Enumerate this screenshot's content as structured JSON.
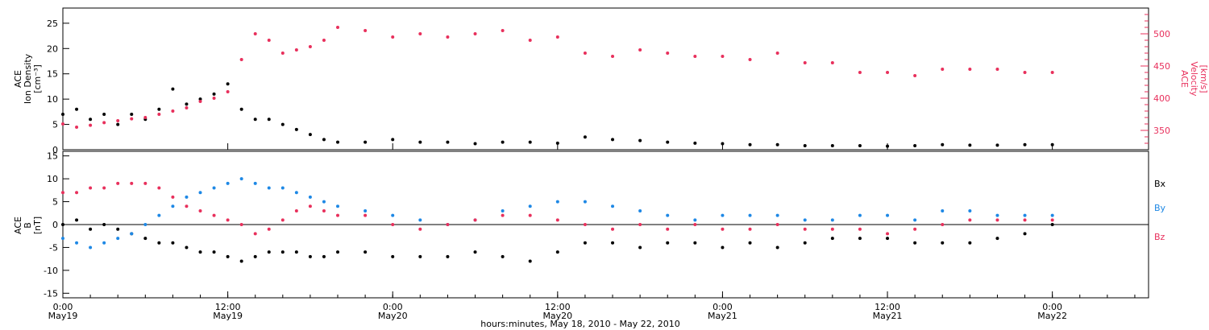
{
  "xaxis": {
    "title": "hours:minutes, May 18, 2010 - May 22, 2010",
    "ticks": [
      {
        "hours": 0,
        "time": "0:00",
        "date": "May19"
      },
      {
        "hours": 12,
        "time": "12:00",
        "date": "May19"
      },
      {
        "hours": 24,
        "time": "0:00",
        "date": "May20"
      },
      {
        "hours": 36,
        "time": "12:00",
        "date": "May20"
      },
      {
        "hours": 48,
        "time": "0:00",
        "date": "May21"
      },
      {
        "hours": 60,
        "time": "12:00",
        "date": "May21"
      },
      {
        "hours": 72,
        "time": "0:00",
        "date": "May22"
      }
    ],
    "range_hours": [
      0,
      79
    ]
  },
  "colors": {
    "density": "#000000",
    "velocity": "#e8305c",
    "bx": "#000000",
    "by": "#1e88e5",
    "bz": "#e8305c"
  },
  "chart_data": [
    {
      "type": "scatter",
      "panel": "plasma",
      "ylabel_left": [
        "ACE",
        "Ion Density",
        "[cm⁻³]"
      ],
      "ylabel_right": [
        "ACE",
        "Velocity",
        "[km/s]"
      ],
      "y_left": {
        "range": [
          0,
          28
        ],
        "ticks": [
          0,
          5,
          10,
          15,
          20,
          25
        ]
      },
      "y_right": {
        "range": [
          320,
          540
        ],
        "ticks": [
          350,
          400,
          450,
          500
        ]
      },
      "grid": false,
      "series": [
        {
          "key": "density",
          "axis": "left",
          "x": [
            0,
            1,
            2,
            3,
            4,
            5,
            6,
            7,
            8,
            9,
            10,
            11,
            12,
            13,
            14,
            15,
            16,
            17,
            18,
            19,
            20,
            22,
            24,
            26,
            28,
            30,
            32,
            34,
            36,
            38,
            40,
            42,
            44,
            46,
            48,
            50,
            52,
            54,
            56,
            58,
            60,
            62,
            64,
            66,
            68,
            70,
            72
          ],
          "y": [
            7,
            8,
            6,
            7,
            5,
            7,
            6,
            8,
            12,
            9,
            10,
            11,
            13,
            8,
            6,
            6,
            5,
            4,
            3,
            2,
            1.5,
            1.5,
            2,
            1.5,
            1.5,
            1.2,
            1.5,
            1.5,
            1.3,
            2.5,
            2,
            1.8,
            1.5,
            1.3,
            1.2,
            1,
            1,
            0.8,
            0.8,
            0.8,
            0.7,
            0.8,
            1,
            0.9,
            0.9,
            1,
            1
          ]
        },
        {
          "key": "velocity",
          "axis": "left_scaled",
          "x": [
            0,
            1,
            2,
            3,
            4,
            5,
            6,
            7,
            8,
            9,
            10,
            11,
            12,
            13,
            14,
            15,
            16,
            17,
            18,
            19,
            20,
            22,
            24,
            26,
            28,
            30,
            32,
            34,
            36,
            38,
            40,
            42,
            44,
            46,
            48,
            50,
            52,
            54,
            56,
            58,
            60,
            62,
            64,
            66,
            68,
            70,
            72
          ],
          "y": [
            360,
            355,
            358,
            362,
            365,
            368,
            370,
            375,
            380,
            385,
            395,
            400,
            410,
            460,
            500,
            490,
            470,
            475,
            480,
            490,
            510,
            505,
            495,
            500,
            495,
            500,
            505,
            490,
            495,
            470,
            465,
            475,
            470,
            465,
            465,
            460,
            470,
            455,
            455,
            440,
            440,
            435,
            445,
            445,
            445,
            440,
            440
          ]
        }
      ]
    },
    {
      "type": "scatter",
      "panel": "magnetic",
      "ylabel_left": [
        "ACE",
        "B",
        "[nT]"
      ],
      "y_left": {
        "range": [
          -16,
          16
        ],
        "ticks": [
          -15,
          -10,
          -5,
          0,
          5,
          10,
          15
        ]
      },
      "legend": [
        "Bx",
        "By",
        "Bz"
      ],
      "grid": false,
      "series": [
        {
          "key": "bx",
          "name": "Bx",
          "x": [
            0,
            1,
            2,
            3,
            4,
            5,
            6,
            7,
            8,
            9,
            10,
            11,
            12,
            13,
            14,
            15,
            16,
            17,
            18,
            19,
            20,
            22,
            24,
            26,
            28,
            30,
            32,
            34,
            36,
            38,
            40,
            42,
            44,
            46,
            48,
            50,
            52,
            54,
            56,
            58,
            60,
            62,
            64,
            66,
            68,
            70,
            72
          ],
          "y": [
            0,
            1,
            -1,
            0,
            -1,
            -2,
            -3,
            -4,
            -4,
            -5,
            -6,
            -6,
            -7,
            -8,
            -7,
            -6,
            -6,
            -6,
            -7,
            -7,
            -6,
            -6,
            -7,
            -7,
            -7,
            -6,
            -7,
            -8,
            -6,
            -4,
            -4,
            -5,
            -4,
            -4,
            -5,
            -4,
            -5,
            -4,
            -3,
            -3,
            -3,
            -4,
            -4,
            -4,
            -3,
            -2,
            0
          ]
        },
        {
          "key": "by",
          "name": "By",
          "x": [
            0,
            1,
            2,
            3,
            4,
            5,
            6,
            7,
            8,
            9,
            10,
            11,
            12,
            13,
            14,
            15,
            16,
            17,
            18,
            19,
            20,
            22,
            24,
            26,
            28,
            30,
            32,
            34,
            36,
            38,
            40,
            42,
            44,
            46,
            48,
            50,
            52,
            54,
            56,
            58,
            60,
            62,
            64,
            66,
            68,
            70,
            72
          ],
          "y": [
            -3,
            -4,
            -5,
            -4,
            -3,
            -2,
            0,
            2,
            4,
            6,
            7,
            8,
            9,
            10,
            9,
            8,
            8,
            7,
            6,
            5,
            4,
            3,
            2,
            1,
            0,
            1,
            3,
            4,
            5,
            5,
            4,
            3,
            2,
            1,
            2,
            2,
            2,
            1,
            1,
            2,
            2,
            1,
            3,
            3,
            2,
            2,
            2
          ]
        },
        {
          "key": "bz",
          "name": "Bz",
          "x": [
            0,
            1,
            2,
            3,
            4,
            5,
            6,
            7,
            8,
            9,
            10,
            11,
            12,
            13,
            14,
            15,
            16,
            17,
            18,
            19,
            20,
            22,
            24,
            26,
            28,
            30,
            32,
            34,
            36,
            38,
            40,
            42,
            44,
            46,
            48,
            50,
            52,
            54,
            56,
            58,
            60,
            62,
            64,
            66,
            68,
            70,
            72
          ],
          "y": [
            7,
            7,
            8,
            8,
            9,
            9,
            9,
            8,
            6,
            4,
            3,
            2,
            1,
            0,
            -2,
            -1,
            1,
            3,
            4,
            3,
            2,
            2,
            0,
            -1,
            0,
            1,
            2,
            2,
            1,
            0,
            -1,
            0,
            -1,
            0,
            -1,
            -1,
            0,
            -1,
            -1,
            -1,
            -2,
            -1,
            0,
            1,
            1,
            1,
            1
          ]
        }
      ]
    }
  ]
}
